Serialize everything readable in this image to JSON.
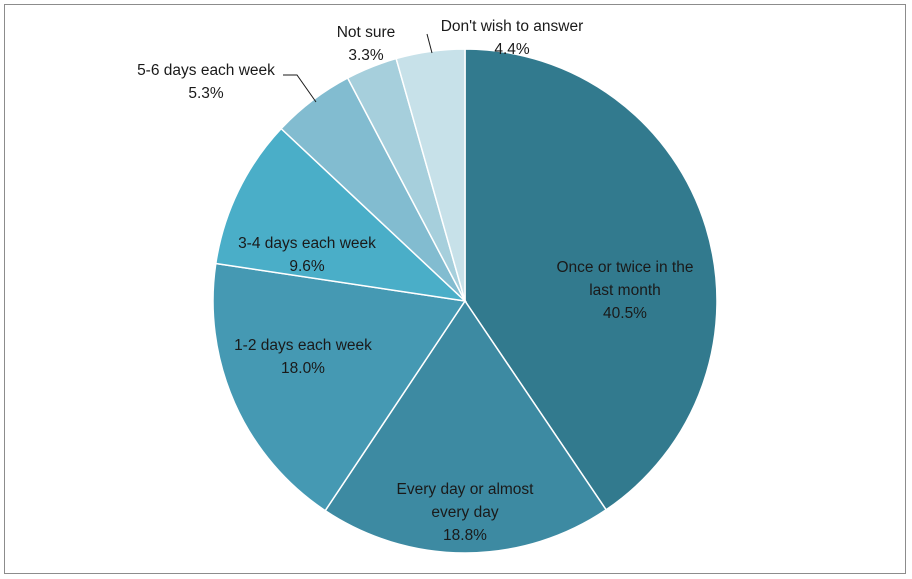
{
  "chart_data": {
    "type": "pie",
    "title": "",
    "slices": [
      {
        "label_lines": [
          "Once or twice in the",
          "last month"
        ],
        "value": 40.5,
        "value_label": "40.5%",
        "color": "#327a8e"
      },
      {
        "label_lines": [
          "Every day or almost",
          "every day"
        ],
        "value": 18.8,
        "value_label": "18.8%",
        "color": "#3d8aa2"
      },
      {
        "label_lines": [
          "1-2 days each week"
        ],
        "value": 18.0,
        "value_label": "18.0%",
        "color": "#4599b3"
      },
      {
        "label_lines": [
          "3-4 days each week"
        ],
        "value": 9.6,
        "value_label": "9.6%",
        "color": "#4aaec8"
      },
      {
        "label_lines": [
          "5-6 days each week"
        ],
        "value": 5.3,
        "value_label": "5.3%",
        "color": "#82bcd0"
      },
      {
        "label_lines": [
          "Not sure"
        ],
        "value": 3.3,
        "value_label": "3.3%",
        "color": "#a6cfdc"
      },
      {
        "label_lines": [
          "Don't wish to answer"
        ],
        "value": 4.4,
        "value_label": "4.4%",
        "color": "#c7e1e9"
      }
    ]
  }
}
